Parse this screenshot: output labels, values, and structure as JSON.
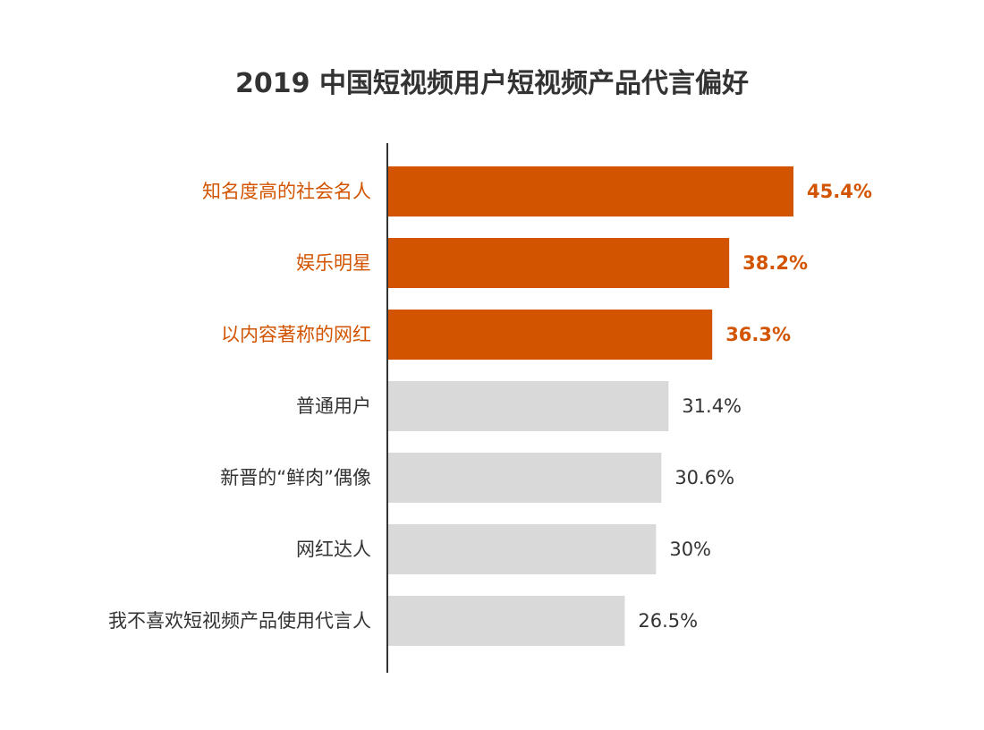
{
  "chart_data": {
    "type": "bar",
    "orientation": "horizontal",
    "title": "2019 中国短视频用户短视频产品代言偏好",
    "categories": [
      "知名度高的社会名人",
      "娱乐明星",
      "以内容著称的网红",
      "普通用户",
      "新晋的“鲜肉”偶像",
      "网红达人",
      "我不喜欢短视频产品使用代言人"
    ],
    "values": [
      45.4,
      38.2,
      36.3,
      31.4,
      30.6,
      30,
      26.5
    ],
    "value_labels": [
      "45.4%",
      "38.2%",
      "36.3%",
      "31.4%",
      "30.6%",
      "30%",
      "26.5%"
    ],
    "highlighted": [
      true,
      true,
      true,
      false,
      false,
      false,
      false
    ],
    "xlim": [
      0,
      50
    ],
    "grid": false,
    "legend": "none",
    "xlabel": "",
    "ylabel": ""
  },
  "colors": {
    "highlight": "#d35400",
    "normal": "#d9d9d9",
    "text_normal": "#333333",
    "axis": "#333333"
  }
}
